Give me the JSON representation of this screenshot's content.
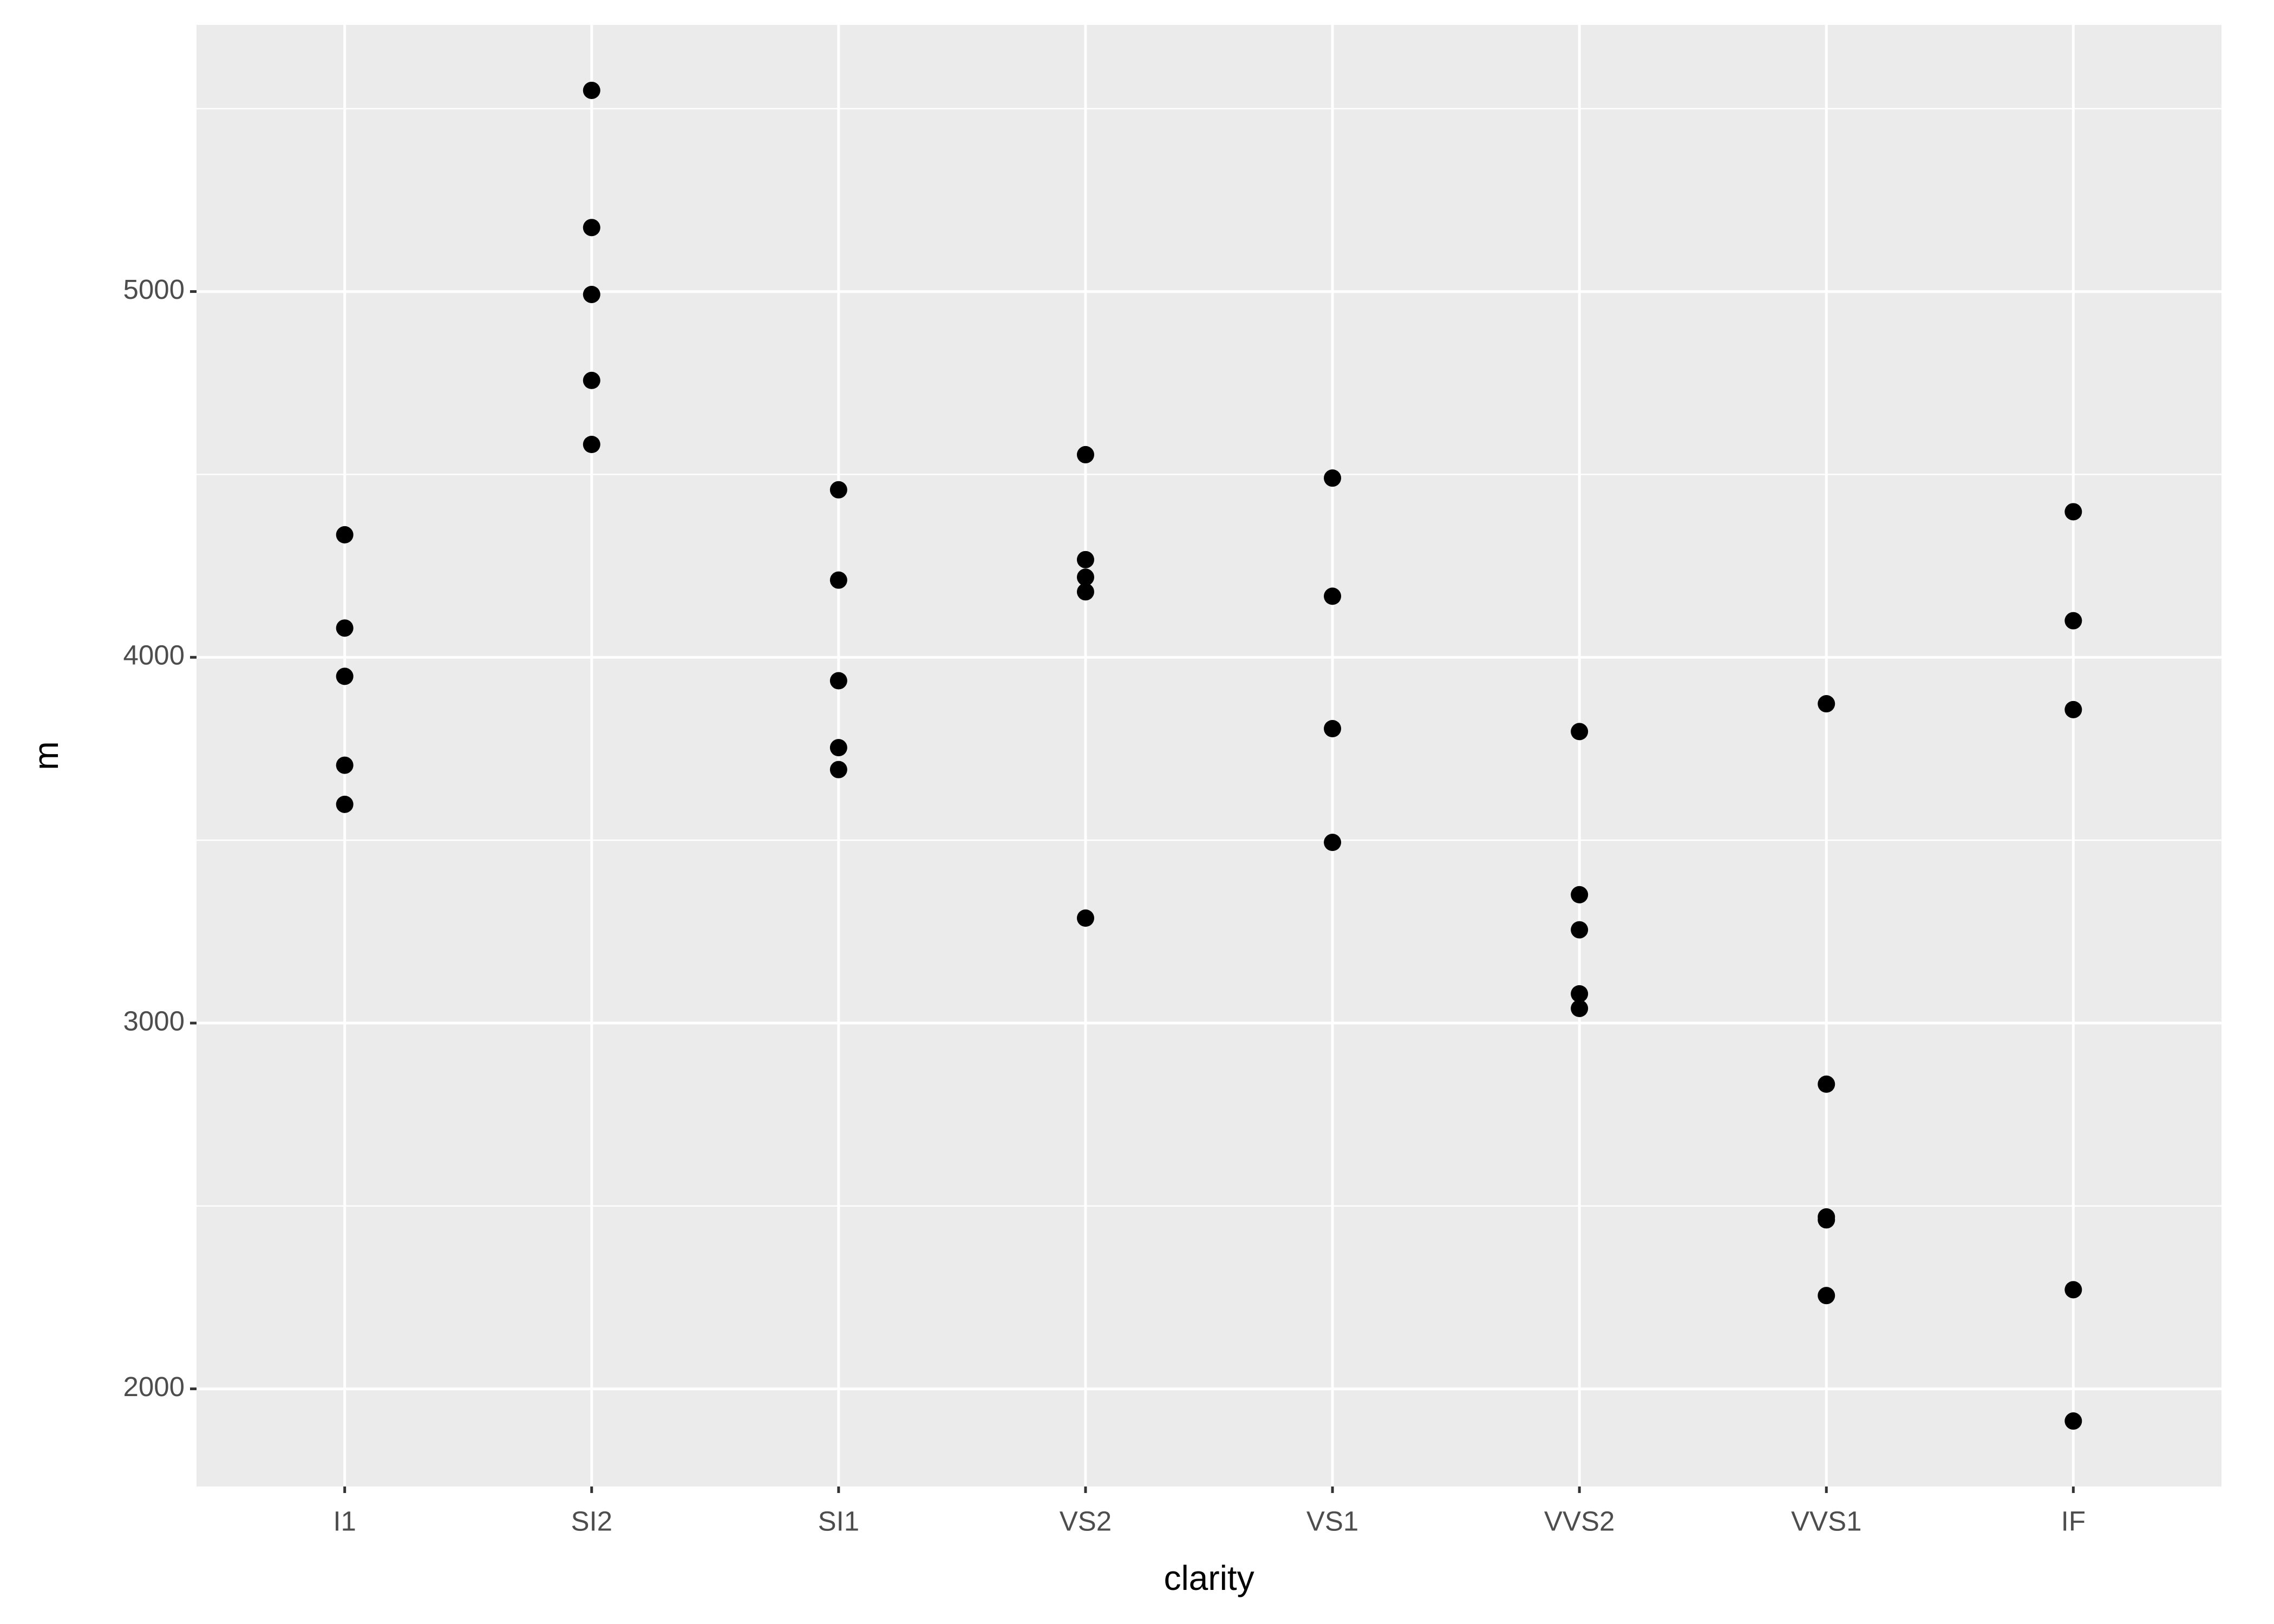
{
  "chart_data": {
    "type": "scatter",
    "x_label": "clarity",
    "y_label": "m",
    "categories": [
      "I1",
      "SI2",
      "SI1",
      "VS2",
      "VS1",
      "VVS2",
      "VVS1",
      "IF"
    ],
    "values": [
      [
        4335,
        4080,
        3948,
        3705,
        3598
      ],
      [
        5550,
        5175,
        4992,
        4757,
        4582
      ],
      [
        4458,
        4211,
        3936,
        3753,
        3693
      ],
      [
        4554,
        4267,
        4219,
        4179,
        3287
      ],
      [
        4490,
        4167,
        3805,
        3494
      ],
      [
        3797,
        3351,
        3255,
        3080,
        3040
      ],
      [
        3873,
        2833,
        2470,
        2462,
        2255
      ],
      [
        4398,
        4100,
        3857,
        2271,
        1912
      ]
    ],
    "color": "#000000",
    "ylim": [
      1733,
      5729
    ],
    "yticks": [
      2000,
      3000,
      4000,
      5000
    ],
    "grid": true
  }
}
